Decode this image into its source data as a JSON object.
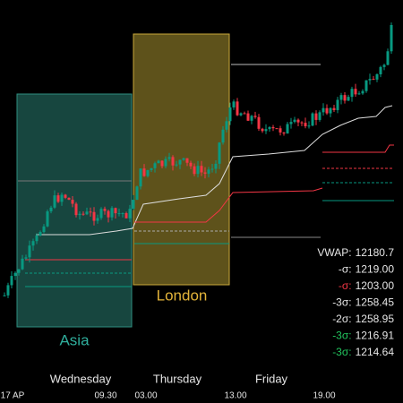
{
  "sessions": [
    {
      "label": "Asia"
    },
    {
      "label": "London"
    }
  ],
  "days": [
    "Wednesday",
    "Thursday",
    "Friday"
  ],
  "times": [
    "17 AP",
    "09.30",
    "03.00",
    "13.00",
    "19.00"
  ],
  "levels": [
    {
      "label": "VWAP:",
      "value": "12180.7"
    },
    {
      "label": "-σ:",
      "value": "1219.00"
    },
    {
      "label": "-σ:",
      "value": "1203.00"
    },
    {
      "label": "-3σ:",
      "value": "1258.45"
    },
    {
      "label": "-2σ:",
      "value": "1258.95"
    },
    {
      "label": "-3σ:",
      "value": "1216.91"
    },
    {
      "label": "-3σ:",
      "value": "1214.64"
    }
  ]
}
